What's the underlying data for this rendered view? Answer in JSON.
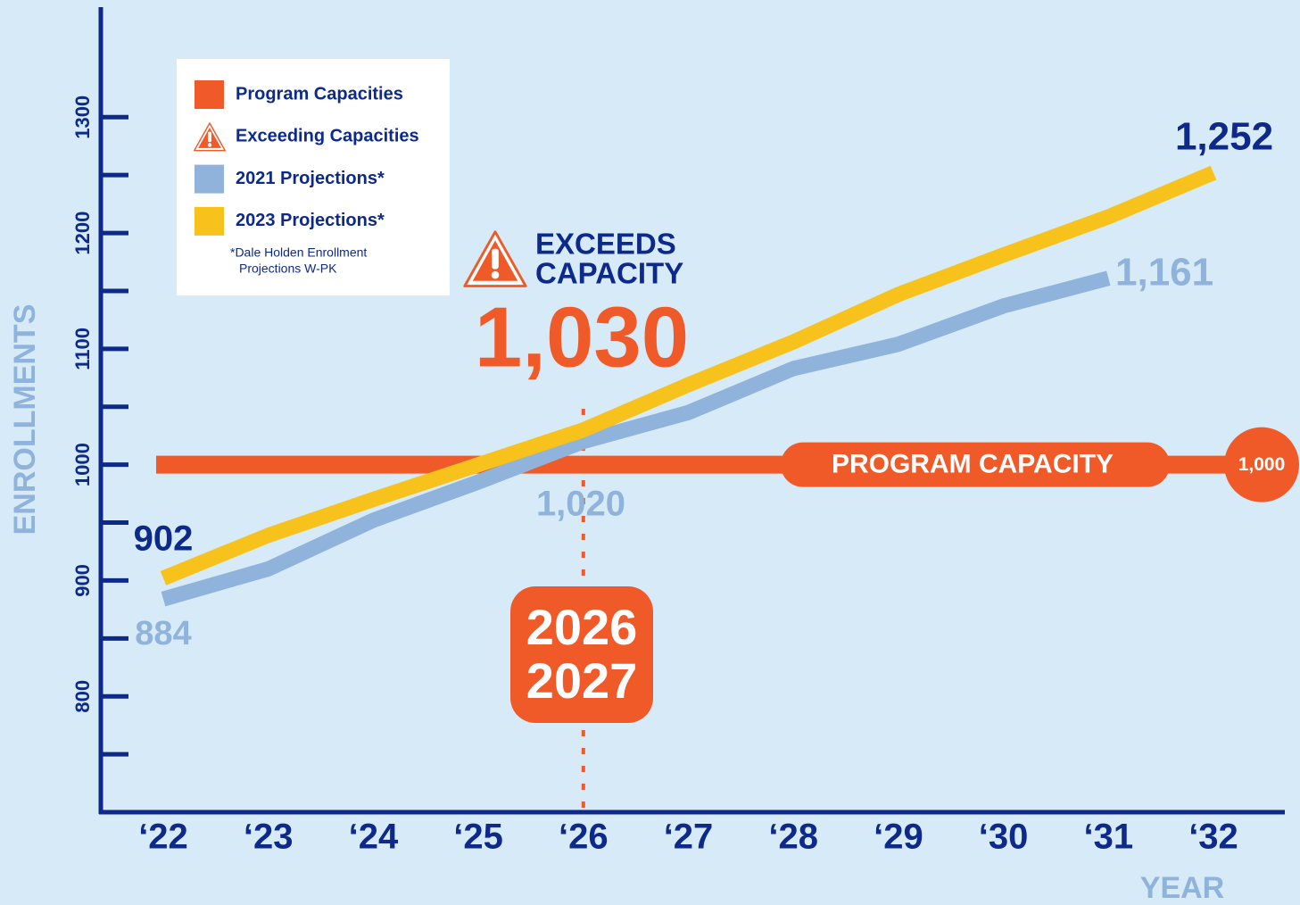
{
  "chart_data": {
    "type": "line",
    "y_axis_label": "ENROLLMENTS",
    "x_axis_label": "YEAR",
    "categories": [
      "‘22",
      "‘23",
      "‘24",
      "‘25",
      "‘26",
      "‘27",
      "‘28",
      "‘29",
      "‘30",
      "‘31",
      "‘32"
    ],
    "series": [
      {
        "name": "2021 Projections*",
        "color": "#8fb3da",
        "label_color": "#8fb3da",
        "values": [
          884,
          910,
          952,
          985,
          1020,
          1045,
          1083,
          1104,
          1137,
          1161,
          null
        ],
        "value_labels": [
          "884",
          null,
          null,
          null,
          "1,020",
          null,
          null,
          null,
          null,
          "1,161",
          null
        ]
      },
      {
        "name": "2023 Projections*",
        "color": "#f7c21b",
        "label_color": "#0d2a8a",
        "values": [
          902,
          939,
          970,
          1000,
          1030,
          1069,
          1106,
          1147,
          1181,
          1214,
          1252
        ],
        "value_labels": [
          "902",
          null,
          null,
          null,
          "1,030",
          null,
          null,
          null,
          null,
          null,
          "1,252"
        ]
      }
    ],
    "capacity": {
      "value": 1000,
      "value_label": "1,000",
      "label": "PROGRAM CAPACITY",
      "color": "#f05a28"
    },
    "exceed_annotation": {
      "lines": [
        "EXCEEDS",
        "CAPACITY"
      ],
      "category": 4,
      "period": [
        "2026",
        "2027"
      ]
    },
    "legend_extra": [
      {
        "label": "Program Capacities",
        "icon": "square",
        "color": "#f05a28"
      },
      {
        "label": "Exceeding Capacities",
        "icon": "warning",
        "color": "#f05a28"
      }
    ],
    "legend_note": [
      "*Dale Holden Enrollment",
      "Projections W-PK"
    ],
    "ylim": [
      700,
      1395
    ],
    "yticks": [
      800,
      900,
      1000,
      1100,
      1200,
      1300
    ],
    "yminor_ticks": [
      750,
      850,
      950,
      1050,
      1150,
      1250
    ],
    "legend_position": "upper left",
    "grid": false
  }
}
